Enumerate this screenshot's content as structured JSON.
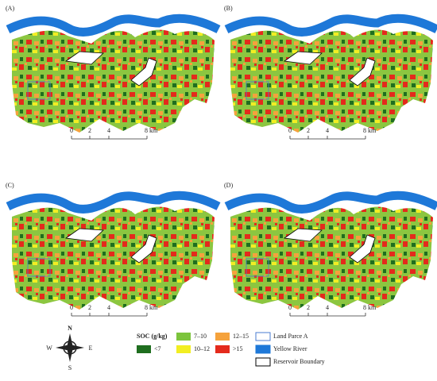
{
  "panels": [
    {
      "label": "(A)",
      "scale": [
        "0",
        "2",
        "4",
        "8 km"
      ]
    },
    {
      "label": "(B)",
      "scale": [
        "0",
        "2",
        "4",
        "8 km"
      ]
    },
    {
      "label": "(C)",
      "scale": [
        "0",
        "2",
        "4",
        "8 km"
      ]
    },
    {
      "label": "(D)",
      "scale": [
        "0",
        "2",
        "4",
        "8 km"
      ]
    }
  ],
  "legend": {
    "title": "SOC (g/kg)",
    "classes": [
      {
        "label": "<7",
        "color": "#1f6e1f"
      },
      {
        "label": "7–10",
        "color": "#7cc43c"
      },
      {
        "label": "10–12",
        "color": "#f2ee22"
      },
      {
        "label": "12–15",
        "color": "#f5a23c"
      },
      {
        "label": ">15",
        "color": "#e42a1c"
      }
    ],
    "features": [
      "Land Parce A",
      "Yellow River",
      "Reservoir Boundary"
    ]
  },
  "compass": {
    "north": "N",
    "south": "S",
    "west": "W",
    "east": "E"
  }
}
